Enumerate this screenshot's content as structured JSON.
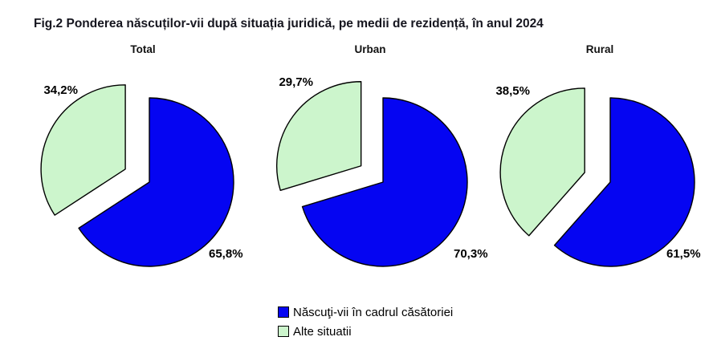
{
  "figure": {
    "title": "Fig.2 Ponderea născuților-vii după situația juridică, pe medii de rezidență, în anul 2024",
    "unit": "%"
  },
  "chart_data": [
    {
      "type": "pie",
      "title": "Total",
      "legend_position": "bottom",
      "slices": [
        {
          "label": "Născuţi-vii în cadrul căsătoriei",
          "value": 65.8,
          "display": "65,8%",
          "color": "#0505f2",
          "exploded": false
        },
        {
          "label": "Alte situatii",
          "value": 34.2,
          "display": "34,2%",
          "color": "#ccf5cc",
          "exploded": true
        }
      ]
    },
    {
      "type": "pie",
      "title": "Urban",
      "legend_position": "bottom",
      "slices": [
        {
          "label": "Născuţi-vii în cadrul căsătoriei",
          "value": 70.3,
          "display": "70,3%",
          "color": "#0505f2",
          "exploded": false
        },
        {
          "label": "Alte situatii",
          "value": 29.7,
          "display": "29,7%",
          "color": "#ccf5cc",
          "exploded": true
        }
      ]
    },
    {
      "type": "pie",
      "title": "Rural",
      "legend_position": "bottom",
      "slices": [
        {
          "label": "Născuţi-vii în cadrul căsătoriei",
          "value": 61.5,
          "display": "61,5%",
          "color": "#0505f2",
          "exploded": false
        },
        {
          "label": "Alte situatii",
          "value": 38.5,
          "display": "38,5%",
          "color": "#ccf5cc",
          "exploded": true
        }
      ]
    }
  ],
  "legend": {
    "items": [
      {
        "label": "Născuţi-vii în cadrul căsătoriei",
        "color": "#0505f2"
      },
      {
        "label": "Alte situatii",
        "color": "#ccf5cc"
      }
    ]
  }
}
